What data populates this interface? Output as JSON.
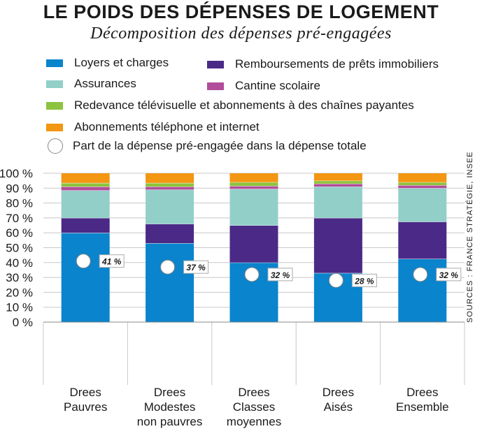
{
  "title": "LE POIDS DES DÉPENSES DE LOGEMENT",
  "subtitle": "Décomposition des dépenses pré-engagées",
  "source": "SOURCES : FRANCE STRATÉGIE, INSEE",
  "chart_data": {
    "type": "bar",
    "stacked": true,
    "ylim": [
      0,
      100
    ],
    "yticks": [
      "0 %",
      "10 %",
      "20 %",
      "30 %",
      "40 %",
      "50 %",
      "60 %",
      "70 %",
      "80 %",
      "90 %",
      "100 %"
    ],
    "categories": [
      [
        "Drees",
        "Pauvres"
      ],
      [
        "Drees",
        "Modestes",
        "non pauvres"
      ],
      [
        "Drees",
        "Classes",
        "moyennes"
      ],
      [
        "Drees",
        "Aisés"
      ],
      [
        "Drees",
        "Ensemble"
      ]
    ],
    "series": [
      {
        "name": "Loyers et charges",
        "color": "#0a84cc",
        "values": [
          60,
          53,
          40,
          33,
          42.5
        ]
      },
      {
        "name": "Remboursements de prêts immobiliers",
        "color": "#4a2a86",
        "values": [
          10,
          13,
          25,
          37,
          25
        ]
      },
      {
        "name": "Assurances",
        "color": "#92cfc9",
        "values": [
          18.5,
          23,
          24.5,
          21,
          22.5
        ]
      },
      {
        "name": "Cantine scolaire",
        "color": "#b14d9a",
        "values": [
          2.5,
          2,
          2,
          2,
          2
        ]
      },
      {
        "name": "Redevance télévisuelle et abonnements à des chaînes payantes",
        "color": "#8dc33f",
        "values": [
          2.5,
          2.5,
          2.5,
          2,
          2
        ]
      },
      {
        "name": "Abonnements téléphone et internet",
        "color": "#f39612",
        "values": [
          6.5,
          6.5,
          6,
          5,
          6
        ]
      }
    ],
    "share_marker": {
      "name": "Part de la dépense pré-engagée dans la dépense totale",
      "values": [
        41,
        37,
        32,
        28,
        32
      ],
      "labels": [
        "41 %",
        "37 %",
        "32 %",
        "28 %",
        "32 %"
      ]
    }
  }
}
